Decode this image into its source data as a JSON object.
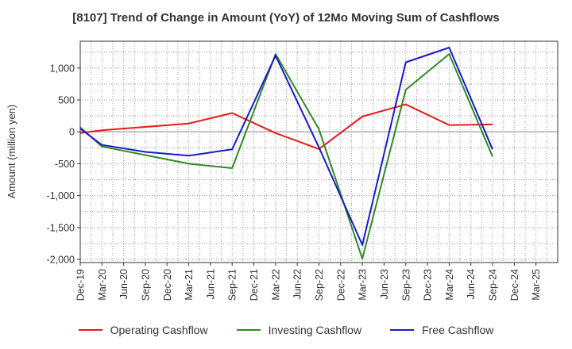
{
  "chart_data": {
    "type": "line",
    "title": "[8107]  Trend of Change in Amount (YoY) of 12Mo Moving Sum of Cashflows",
    "xlabel": "",
    "ylabel": "Amount (million yen)",
    "ylim": [
      -2050,
      1420
    ],
    "yticks": [
      -2000,
      -1500,
      -1000,
      -500,
      0,
      500,
      1000
    ],
    "ytick_labels": [
      "-2,000",
      "-1,500",
      "-1,000",
      "-500",
      "0",
      "500",
      "1,000"
    ],
    "categories": [
      "Dec-19",
      "Mar-20",
      "Jun-20",
      "Sep-20",
      "Dec-20",
      "Mar-21",
      "Jun-21",
      "Sep-21",
      "Dec-21",
      "Mar-22",
      "Jun-22",
      "Sep-22",
      "Dec-22",
      "Mar-23",
      "Jun-23",
      "Sep-23",
      "Dec-23",
      "Mar-24",
      "Jun-24",
      "Sep-24",
      "Dec-24",
      "Mar-25"
    ],
    "series": [
      {
        "name": "Operating Cashflow",
        "color": "#e8191a",
        "points": [
          [
            0,
            -20
          ],
          [
            1,
            25
          ],
          [
            5,
            130
          ],
          [
            7,
            295
          ],
          [
            9,
            -20
          ],
          [
            11,
            -270
          ],
          [
            13,
            240
          ],
          [
            15,
            430
          ],
          [
            17,
            105
          ],
          [
            19,
            115
          ]
        ]
      },
      {
        "name": "Investing Cashflow",
        "color": "#2e8b22",
        "points": [
          [
            0,
            70
          ],
          [
            1,
            -230
          ],
          [
            5,
            -500
          ],
          [
            7,
            -570
          ],
          [
            9,
            1220
          ],
          [
            11,
            40
          ],
          [
            13,
            -1990
          ],
          [
            15,
            660
          ],
          [
            17,
            1220
          ],
          [
            19,
            -390
          ]
        ]
      },
      {
        "name": "Free Cashflow",
        "color": "#1a1acc",
        "points": [
          [
            0,
            50
          ],
          [
            1,
            -205
          ],
          [
            3,
            -315
          ],
          [
            5,
            -375
          ],
          [
            7,
            -275
          ],
          [
            9,
            1195
          ],
          [
            11,
            -245
          ],
          [
            13,
            -1775
          ],
          [
            15,
            1090
          ],
          [
            17,
            1320
          ],
          [
            19,
            -275
          ]
        ]
      }
    ],
    "legend": [
      "Operating Cashflow",
      "Investing Cashflow",
      "Free Cashflow"
    ],
    "legend_position": "bottom",
    "grid": true
  }
}
